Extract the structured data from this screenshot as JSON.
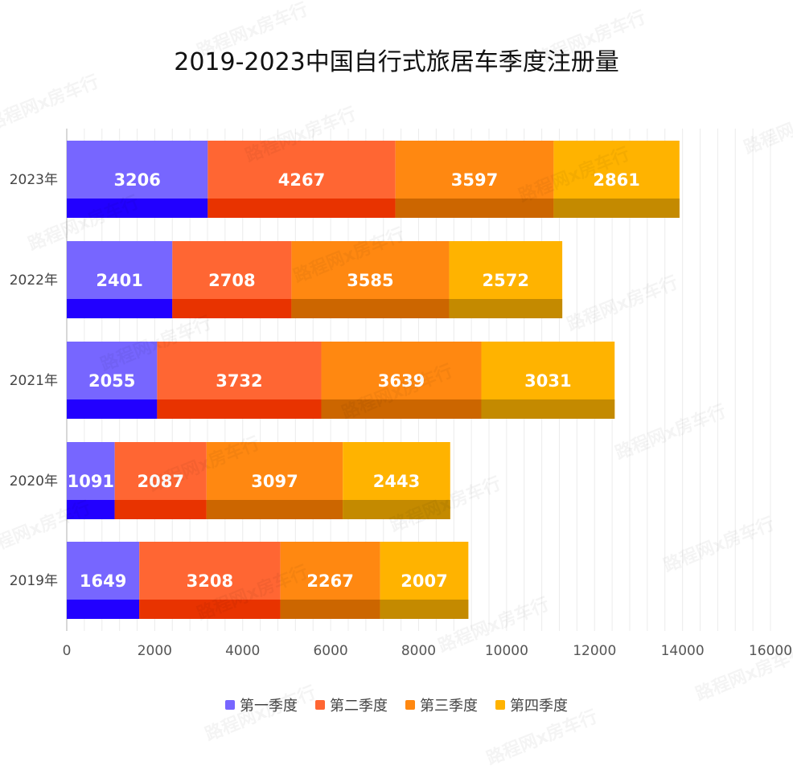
{
  "chart_data": {
    "type": "bar",
    "orientation": "horizontal",
    "stacked": true,
    "title": "2019-2023中国自行式旅居车季度注册量",
    "categories": [
      "2023年",
      "2022年",
      "2021年",
      "2020年",
      "2019年"
    ],
    "series": [
      {
        "name": "第一季度",
        "values": [
          3206,
          2401,
          2055,
          1091,
          1649
        ],
        "color": "#7766ff",
        "shade": "#2200ff"
      },
      {
        "name": "第二季度",
        "values": [
          4267,
          2708,
          3732,
          2087,
          3208
        ],
        "color": "#ff6633",
        "shade": "#e83300"
      },
      {
        "name": "第三季度",
        "values": [
          3597,
          3585,
          3639,
          3097,
          2267
        ],
        "color": "#ff8811",
        "shade": "#cc6600"
      },
      {
        "name": "第四季度",
        "values": [
          2861,
          2572,
          3031,
          2443,
          2007
        ],
        "color": "#ffb300",
        "shade": "#c48a00"
      }
    ],
    "x_ticks": [
      "0",
      "2000",
      "4000",
      "6000",
      "8000",
      "10000",
      "12000",
      "14000",
      "16000"
    ],
    "xlim": [
      0,
      16000
    ],
    "grid": true,
    "legend_position": "bottom",
    "watermark": "路程网x房车行"
  }
}
